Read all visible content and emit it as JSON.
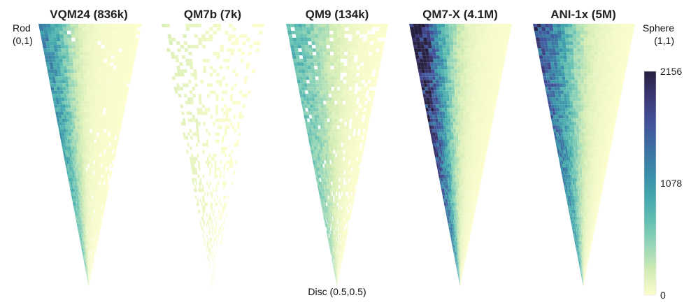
{
  "chart_data": {
    "type": "heatmap",
    "panels": [
      {
        "title": "VQM24 (836k)",
        "peak_density": 1150,
        "tail_density": 350,
        "fill": 0.92,
        "spread": 0.35
      },
      {
        "title": "QM7b (7k)",
        "peak_density": 160,
        "tail_density": 60,
        "fill": 0.22,
        "spread": 0.6
      },
      {
        "title": "QM9 (134k)",
        "peak_density": 700,
        "tail_density": 450,
        "fill": 0.85,
        "spread": 0.5
      },
      {
        "title": "QM7-X (4.1M)",
        "peak_density": 2156,
        "tail_density": 700,
        "fill": 1.0,
        "spread": 0.4
      },
      {
        "title": "ANI-1x (5M)",
        "peak_density": 1500,
        "tail_density": 850,
        "fill": 1.0,
        "spread": 0.45
      }
    ],
    "corners": {
      "rod": {
        "name": "Rod",
        "coord": "(0,1)"
      },
      "sphere": {
        "name": "Sphere",
        "coord": "(1,1)"
      },
      "disc": {
        "name": "Disc",
        "coord": "(0.5,0.5)"
      }
    },
    "colorbar": {
      "min": 0,
      "max": 2156,
      "ticks": [
        0,
        1078,
        2156
      ],
      "tick_labels": [
        "0",
        "1078",
        "2156"
      ],
      "colormap": [
        "#fcfdcd",
        "#d2ecb4",
        "#97d6b8",
        "#62bfb2",
        "#42a5ad",
        "#3a8aa8",
        "#3d6da2",
        "#43509a",
        "#3b3774",
        "#271f3f"
      ]
    }
  }
}
